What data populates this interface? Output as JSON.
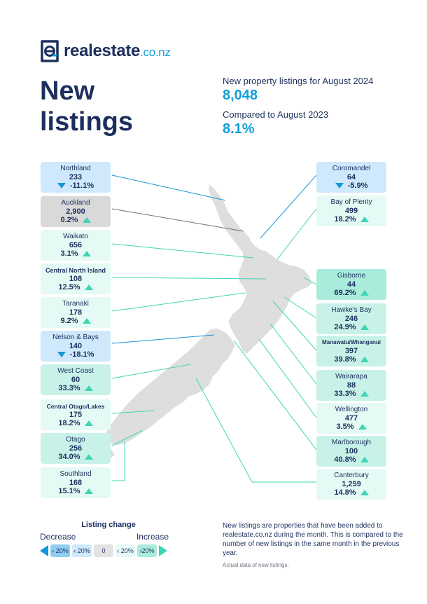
{
  "brand": {
    "name": "realestate",
    "tld": ".co.nz",
    "colors": {
      "navy": "#1c2f5e",
      "blue": "#0f9fd8"
    }
  },
  "title": {
    "line1": "New",
    "line2": "listings"
  },
  "stats": {
    "label1": "New property listings for August 2024",
    "value1": "8,048",
    "label2": "Compared to August 2023",
    "value2": "8.1%"
  },
  "regions": [
    {
      "name": "Northland",
      "count": "233",
      "change": "-11.1%",
      "dir": "down"
    },
    {
      "name": "Auckland",
      "count": "2,900",
      "change": "0.2%",
      "dir": "up"
    },
    {
      "name": "Waikato",
      "count": "656",
      "change": "3.1%",
      "dir": "up"
    },
    {
      "name": "Central North Island",
      "count": "108",
      "change": "12.5%",
      "dir": "up"
    },
    {
      "name": "Taranaki",
      "count": "178",
      "change": "9.2%",
      "dir": "up"
    },
    {
      "name": "Nelson & Bays",
      "count": "140",
      "change": "-18.1%",
      "dir": "down"
    },
    {
      "name": "West Coast",
      "count": "60",
      "change": "33.3%",
      "dir": "up"
    },
    {
      "name": "Central Otago/Lakes",
      "count": "175",
      "change": "18.2%",
      "dir": "up"
    },
    {
      "name": "Otago",
      "count": "256",
      "change": "34.0%",
      "dir": "up"
    },
    {
      "name": "Southland",
      "count": "168",
      "change": "15.1%",
      "dir": "up"
    },
    {
      "name": "Coromandel",
      "count": "64",
      "change": "-5.9%",
      "dir": "down"
    },
    {
      "name": "Bay of Plenty",
      "count": "499",
      "change": "18.2%",
      "dir": "up"
    },
    {
      "name": "Gisborne",
      "count": "44",
      "change": "69.2%",
      "dir": "up"
    },
    {
      "name": "Hawke's Bay",
      "count": "246",
      "change": "24.9%",
      "dir": "up"
    },
    {
      "name": "Manawatu/Whanganui",
      "count": "397",
      "change": "39.8%",
      "dir": "up"
    },
    {
      "name": "Wairarapa",
      "count": "88",
      "change": "33.3%",
      "dir": "up"
    },
    {
      "name": "Wellington",
      "count": "477",
      "change": "3.5%",
      "dir": "up"
    },
    {
      "name": "Marlborough",
      "count": "100",
      "change": "40.8%",
      "dir": "up"
    },
    {
      "name": "Canterbury",
      "count": "1,259",
      "change": "14.8%",
      "dir": "up"
    }
  ],
  "legend": {
    "title": "Listing change",
    "decrease": "Decrease",
    "increase": "Increase",
    "steps": [
      "› 20%",
      "‹ 20%",
      "0",
      "‹ 20%",
      "›20%"
    ]
  },
  "footnote": {
    "text": "New listings are properties that have been added to realestate.co.nz during the month. This is compared to the number of new listings in the same month in the previous year.",
    "small": "Actual data of new listings."
  }
}
